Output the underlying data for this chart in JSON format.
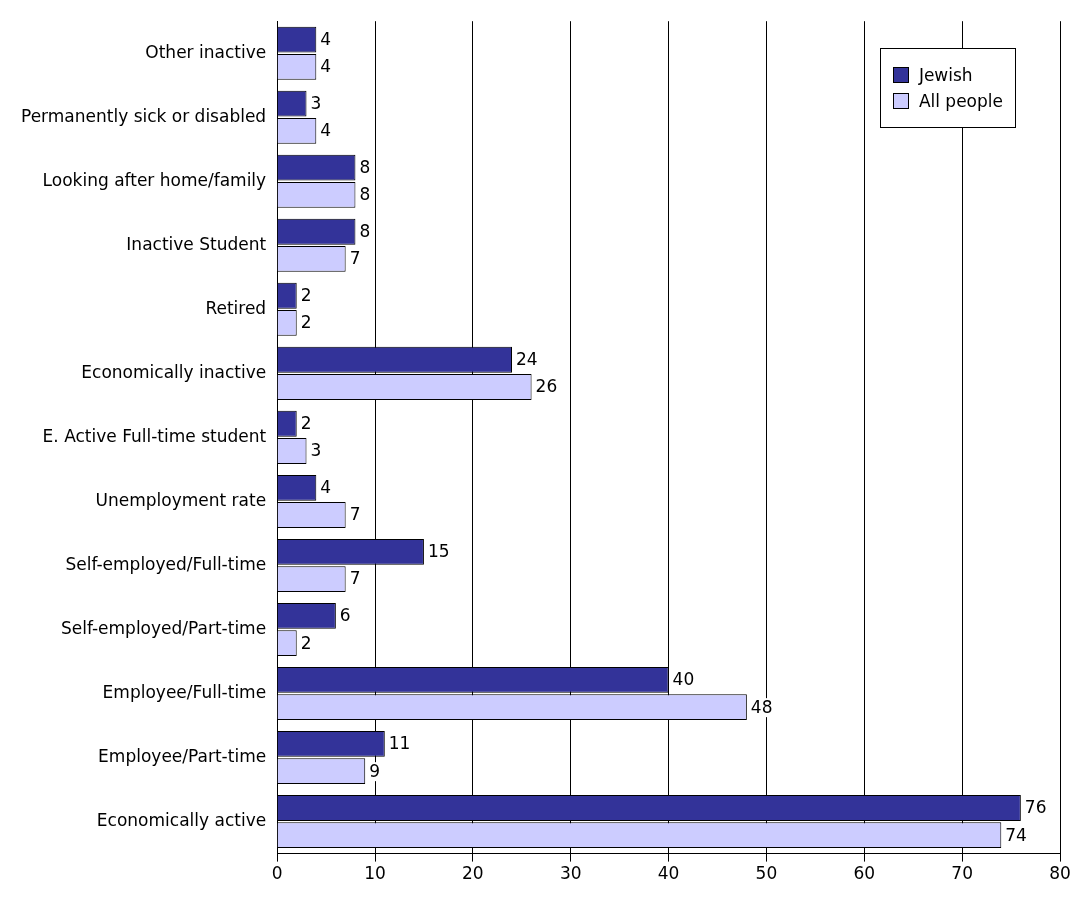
{
  "chart_data": {
    "type": "bar",
    "orientation": "horizontal",
    "categories": [
      "Other inactive",
      "Permanently sick or disabled",
      "Looking after home/family",
      "Inactive Student",
      "Retired",
      "Economically inactive",
      "E. Active Full-time student",
      "Unemployment rate",
      "Self-employed/Full-time",
      "Self-employed/Part-time",
      "Employee/Full-time",
      "Employee/Part-time",
      "Economically active"
    ],
    "series": [
      {
        "name": "Jewish",
        "color": "#333399",
        "values": [
          4,
          3,
          8,
          8,
          2,
          24,
          2,
          4,
          15,
          6,
          40,
          11,
          76
        ]
      },
      {
        "name": "All people",
        "color": "#ccccff",
        "values": [
          4,
          4,
          8,
          7,
          2,
          26,
          3,
          7,
          7,
          2,
          48,
          9,
          74
        ]
      }
    ],
    "xlim": [
      0,
      80
    ],
    "xticks": [
      0,
      10,
      20,
      30,
      40,
      50,
      60,
      70,
      80
    ],
    "grid": "x",
    "legend": "top right",
    "data_labels": true
  }
}
